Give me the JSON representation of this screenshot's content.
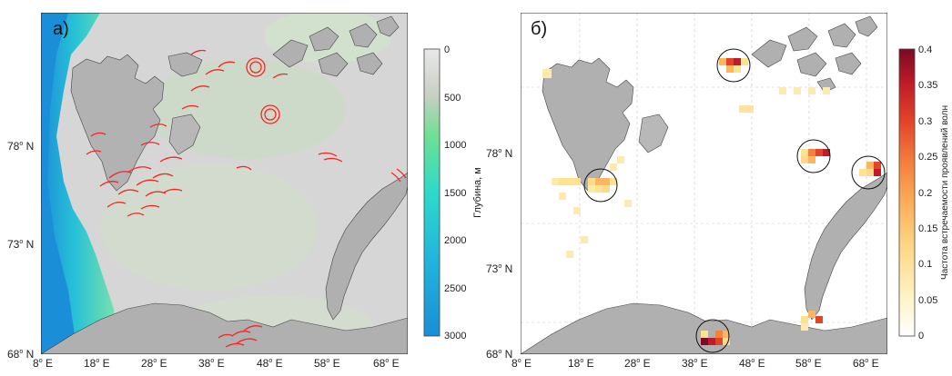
{
  "left_panel": {
    "label": "а)",
    "y_ticks": [
      {
        "deg": "78",
        "suffix": "N"
      },
      {
        "deg": "73",
        "suffix": "N"
      },
      {
        "deg": "68",
        "suffix": "N"
      }
    ],
    "x_ticks": [
      {
        "deg": "8",
        "suffix": "E"
      },
      {
        "deg": "18",
        "suffix": "E"
      },
      {
        "deg": "28",
        "suffix": "E"
      },
      {
        "deg": "38",
        "suffix": "E"
      },
      {
        "deg": "48",
        "suffix": "E"
      },
      {
        "deg": "58",
        "suffix": "E"
      },
      {
        "deg": "68",
        "suffix": "E"
      }
    ],
    "colorbar": {
      "label": "Глубина, м",
      "ticks": [
        "0",
        "500",
        "1000",
        "1500",
        "2000",
        "2500",
        "3000"
      ],
      "colors": [
        "#e6e6e6",
        "#b5d9a8",
        "#6fe092",
        "#2fd9c9",
        "#22b6dc",
        "#1a8ed6"
      ]
    }
  },
  "right_panel": {
    "label": "б)",
    "y_ticks": [
      {
        "deg": "78",
        "suffix": "N"
      },
      {
        "deg": "73",
        "suffix": "N"
      },
      {
        "deg": "68",
        "suffix": "N"
      }
    ],
    "x_ticks": [
      {
        "deg": "8",
        "suffix": "E"
      },
      {
        "deg": "18",
        "suffix": "E"
      },
      {
        "deg": "28",
        "suffix": "E"
      },
      {
        "deg": "38",
        "suffix": "E"
      },
      {
        "deg": "48",
        "suffix": "E"
      },
      {
        "deg": "58",
        "suffix": "E"
      },
      {
        "deg": "68",
        "suffix": "E"
      }
    ],
    "colorbar": {
      "label": "Частота встречаемости проявлений волн",
      "ticks": [
        "0.4",
        "0.35",
        "0.3",
        "0.25",
        "0.2",
        "0.15",
        "0.1",
        "0.05",
        "0"
      ],
      "colors": [
        "#ffffff",
        "#fff2c2",
        "#fde28f",
        "#fdb55f",
        "#f5813e",
        "#e2442a",
        "#bd1d28",
        "#7e0a24"
      ]
    }
  },
  "colors": {
    "land": "#b0b0b0",
    "shelf": "#d9d9d9",
    "deep_water": "#1a8ed6",
    "wave_marks": "#ff2020"
  }
}
